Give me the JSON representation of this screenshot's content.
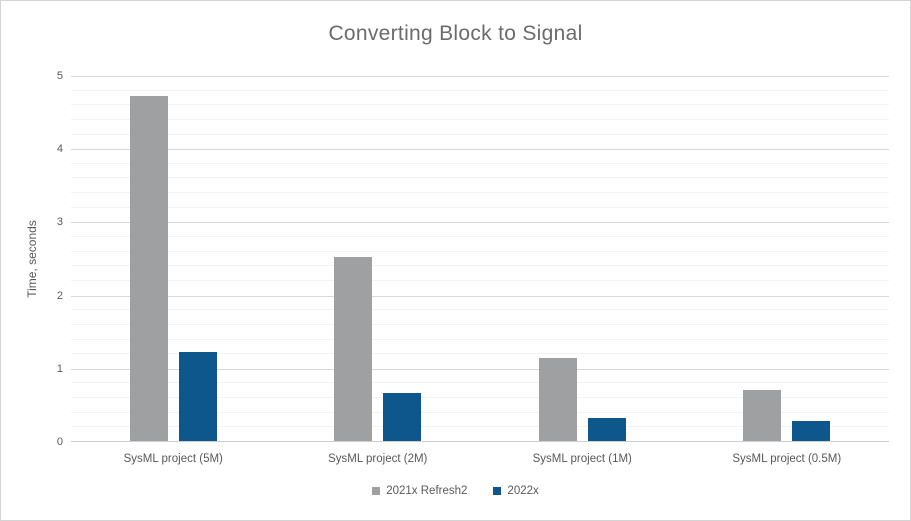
{
  "chart_data": {
    "type": "bar",
    "title": "Converting Block to Signal",
    "xlabel": "",
    "ylabel": "Time, seconds",
    "categories": [
      "SysML project (5M)",
      "SysML project (2M)",
      "SysML project (1M)",
      "SysML project (0.5M)"
    ],
    "series": [
      {
        "name": "2021x Refresh2",
        "color": "#9fa0a2",
        "values": [
          4.71,
          2.51,
          1.14,
          0.7
        ]
      },
      {
        "name": "2022x",
        "color": "#0d578c",
        "values": [
          1.21,
          0.65,
          0.31,
          0.27
        ]
      }
    ],
    "ylim": [
      0,
      5
    ],
    "y_major_step": 1,
    "y_minor_step": 0.2,
    "y_tick_labels": [
      "0",
      "1",
      "2",
      "3",
      "4",
      "5"
    ],
    "grid": "major+minor",
    "legend_position": "bottom"
  },
  "colors": {
    "title_text": "#6b6b6b",
    "axis_text": "#595959",
    "gridline_major": "#d9d9d9",
    "gridline_minor": "#f2f2f2",
    "axis_line": "#cfcfcf",
    "frame_border": "#d4d4d4",
    "background": "#ffffff"
  }
}
